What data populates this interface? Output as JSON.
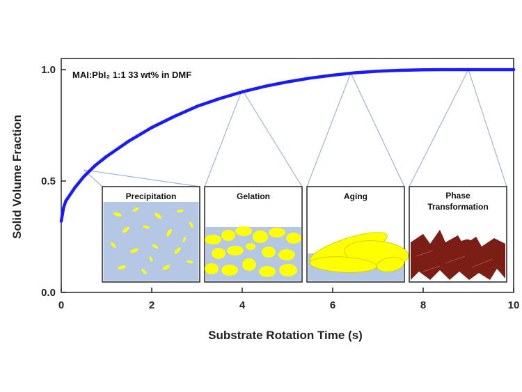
{
  "chart_data": {
    "type": "line",
    "annotation": "MAI:PbI₂ 1:1 33 wt% in DMF",
    "xlabel": "Substrate Rotation Time (s)",
    "ylabel": "Solid Volume Fraction",
    "xlim": [
      0,
      10
    ],
    "ylim": [
      0,
      1.05
    ],
    "x_ticks": [
      "0",
      "2",
      "4",
      "6",
      "8",
      "10"
    ],
    "y_ticks": [
      "0.0",
      "0.5",
      "1.0"
    ],
    "grid": false,
    "series": [
      {
        "color": "#1a1aff",
        "x": [
          0,
          0.05,
          0.1,
          0.2,
          0.3,
          0.5,
          0.75,
          1,
          1.5,
          2,
          2.5,
          3,
          3.5,
          4,
          4.5,
          5,
          5.5,
          6,
          6.5,
          7,
          7.5,
          8,
          8.5,
          9,
          9.5,
          10
        ],
        "y": [
          0.32,
          0.38,
          0.41,
          0.44,
          0.47,
          0.52,
          0.57,
          0.61,
          0.68,
          0.74,
          0.79,
          0.835,
          0.87,
          0.9,
          0.925,
          0.945,
          0.962,
          0.975,
          0.986,
          0.993,
          0.997,
          0.999,
          1.0,
          1.0,
          1.0,
          1.0
        ]
      }
    ],
    "insets": [
      {
        "title": "Precipitation",
        "x_point": 0.5,
        "y_point": 0.55
      },
      {
        "title": "Gelation",
        "x_point": 4.0,
        "y_point": 0.91
      },
      {
        "title": "Aging",
        "x_point": 6.4,
        "y_point": 0.985
      },
      {
        "title": "Phase Transformation",
        "x_point": 9.0,
        "y_point": 1.0
      }
    ]
  },
  "colors": {
    "curve": "#1a1aff",
    "solvent": "#b4c8e6",
    "crystal": "#ffff00",
    "perovskite": "#7b1e16",
    "connector": "#9db4d8"
  }
}
